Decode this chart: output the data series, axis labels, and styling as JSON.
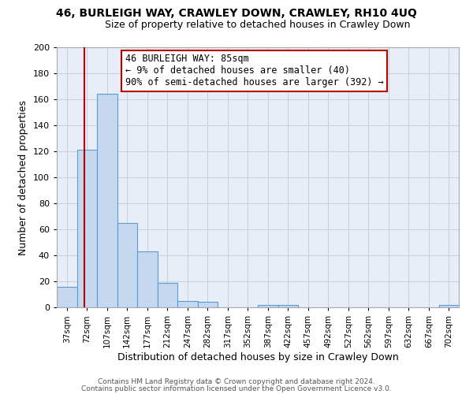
{
  "title": "46, BURLEIGH WAY, CRAWLEY DOWN, CRAWLEY, RH10 4UQ",
  "subtitle": "Size of property relative to detached houses in Crawley Down",
  "xlabel": "Distribution of detached houses by size in Crawley Down",
  "ylabel": "Number of detached properties",
  "bar_edges": [
    37,
    72,
    107,
    142,
    177,
    212,
    247,
    282,
    317,
    352,
    387,
    422,
    457,
    492,
    527,
    562,
    597,
    632,
    667,
    702,
    737
  ],
  "bar_heights": [
    16,
    121,
    164,
    65,
    43,
    19,
    5,
    4,
    0,
    0,
    2,
    2,
    0,
    0,
    0,
    0,
    0,
    0,
    0,
    2
  ],
  "bar_color": "#c5d8f0",
  "bar_edge_color": "#5b9bd5",
  "property_line_x": 85,
  "property_line_color": "#bb0000",
  "ylim": [
    0,
    200
  ],
  "yticks": [
    0,
    20,
    40,
    60,
    80,
    100,
    120,
    140,
    160,
    180,
    200
  ],
  "annotation_title": "46 BURLEIGH WAY: 85sqm",
  "annotation_line1": "← 9% of detached houses are smaller (40)",
  "annotation_line2": "90% of semi-detached houses are larger (392) →",
  "footer_line1": "Contains HM Land Registry data © Crown copyright and database right 2024.",
  "footer_line2": "Contains public sector information licensed under the Open Government Licence v3.0.",
  "background_color": "#ffffff",
  "plot_bg_color": "#e8eef8",
  "grid_color": "#c8d0dc",
  "title_fontsize": 10,
  "subtitle_fontsize": 9,
  "axis_label_fontsize": 9,
  "tick_label_fontsize": 7.5,
  "annotation_fontsize": 8.5,
  "footer_fontsize": 6.5
}
